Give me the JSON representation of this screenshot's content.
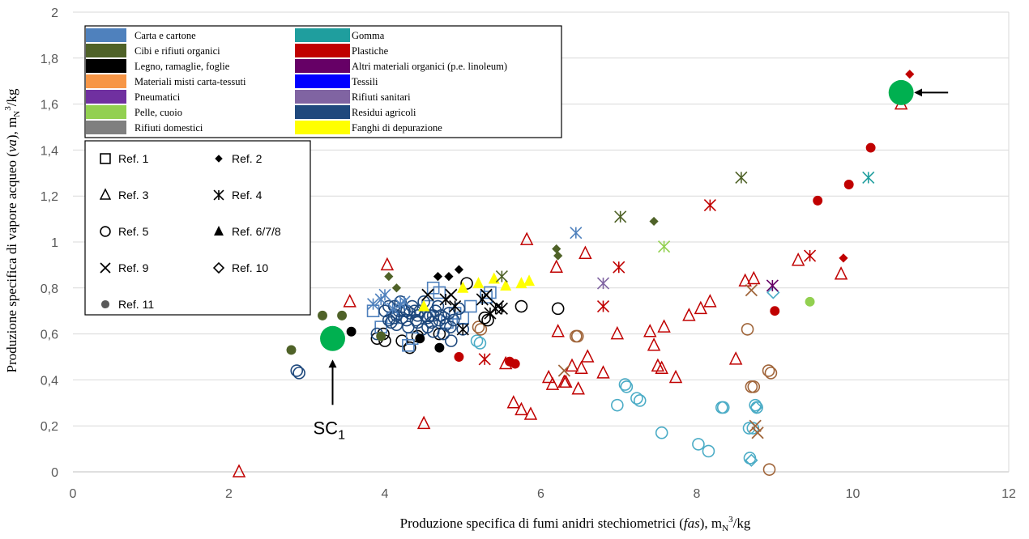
{
  "chart_data": {
    "type": "scatter",
    "title": "",
    "xlabel": {
      "prefix": "Produzione specifica di fumi anidri stechiometrici (",
      "italic": "fas",
      "suffix": "), m",
      "sub": "N",
      "sup": "3",
      "tail": "/kg"
    },
    "ylabel": {
      "prefix": "Produzione specifica di vapore acqueo (",
      "italic": "va",
      "suffix": "), m",
      "sub": "N",
      "sup": "3",
      "tail": "/kg"
    },
    "xlim": [
      0,
      12
    ],
    "ylim": [
      0,
      2
    ],
    "xticks": [
      0,
      2,
      4,
      6,
      8,
      10,
      12
    ],
    "yticks": [
      0,
      0.2,
      0.4,
      0.6,
      0.8,
      1,
      1.2,
      1.4,
      1.6,
      1.8,
      2
    ],
    "ytick_labels": [
      "0",
      "0,2",
      "0,4",
      "0,6",
      "0,8",
      "1",
      "1,2",
      "1,4",
      "1,6",
      "1,8",
      "2"
    ],
    "xtick_labels": [
      "0",
      "2",
      "4",
      "6",
      "8",
      "10",
      "12"
    ],
    "grid": "horizontal",
    "colors": {
      "carta": "#4F81BD",
      "cibi": "#4F6228",
      "legno": "#000000",
      "misti": "#F79646",
      "pneumatici": "#7030A0",
      "pelle": "#92D050",
      "domestici": "#7F7F7F",
      "gomma": "#1F9E9E",
      "plastiche": "#C00000",
      "altri": "#660066",
      "tessili": "#0000FF",
      "sanitari": "#8064A2",
      "agricoli": "#1F497D",
      "fanghi": "#FFFF00",
      "ref3_red": "#C00000",
      "ref10_cyan": "#4BACC6",
      "ref9_brown": "#A0653A",
      "highlight": "#00B050"
    },
    "materials_legend": [
      {
        "label": "Carta e cartone",
        "color": "#4F81BD"
      },
      {
        "label": "Cibi e rifiuti organici",
        "color": "#4F6228"
      },
      {
        "label": "Legno, ramaglie, foglie",
        "color": "#000000"
      },
      {
        "label": "Materiali misti carta-tessuti",
        "color": "#F79646"
      },
      {
        "label": "Pneumatici",
        "color": "#7030A0"
      },
      {
        "label": "Pelle, cuoio",
        "color": "#92D050"
      },
      {
        "label": "Rifiuti domestici",
        "color": "#7F7F7F"
      },
      {
        "label": "Gomma",
        "color": "#1F9E9E"
      },
      {
        "label": "Plastiche",
        "color": "#C00000"
      },
      {
        "label": "Altri materiali organici (p.e. linoleum)",
        "color": "#660066"
      },
      {
        "label": "Tessili",
        "color": "#0000FF"
      },
      {
        "label": "Rifiuti sanitari",
        "color": "#8064A2"
      },
      {
        "label": "Residui agricoli",
        "color": "#1F497D"
      },
      {
        "label": "Fanghi di depurazione",
        "color": "#FFFF00"
      }
    ],
    "refs_legend": [
      {
        "label": "Ref. 1",
        "marker": "square"
      },
      {
        "label": "Ref. 2",
        "marker": "diamond-filled"
      },
      {
        "label": "Ref. 3",
        "marker": "triangle"
      },
      {
        "label": "Ref. 4",
        "marker": "star"
      },
      {
        "label": "Ref. 5",
        "marker": "circle"
      },
      {
        "label": "Ref. 6/7/8",
        "marker": "triangle-filled"
      },
      {
        "label": "Ref. 9",
        "marker": "x"
      },
      {
        "label": "Ref. 10",
        "marker": "diamond"
      },
      {
        "label": "Ref. 11",
        "marker": "circle-filled",
        "color": "#595959"
      }
    ],
    "annotations": [
      {
        "text": "SC",
        "sub": "1",
        "x": 3.33,
        "y": 0.58
      },
      {
        "arrow_to": [
          10.62,
          1.65
        ]
      }
    ],
    "series": [
      {
        "marker": "triangle",
        "color": "#C00000",
        "points": [
          [
            2.13,
            0
          ],
          [
            3.55,
            0.74
          ],
          [
            4.03,
            0.9
          ],
          [
            4.5,
            0.21
          ],
          [
            5.55,
            0.47
          ],
          [
            5.65,
            0.3
          ],
          [
            5.75,
            0.27
          ],
          [
            5.82,
            1.01
          ],
          [
            5.87,
            0.25
          ],
          [
            6.1,
            0.41
          ],
          [
            6.15,
            0.38
          ],
          [
            6.2,
            0.89
          ],
          [
            6.22,
            0.61
          ],
          [
            6.3,
            0.39
          ],
          [
            6.32,
            0.39
          ],
          [
            6.4,
            0.46
          ],
          [
            6.48,
            0.36
          ],
          [
            6.52,
            0.45
          ],
          [
            6.57,
            0.95
          ],
          [
            6.6,
            0.5
          ],
          [
            6.8,
            0.43
          ],
          [
            6.98,
            0.6
          ],
          [
            7.4,
            0.61
          ],
          [
            7.45,
            0.55
          ],
          [
            7.5,
            0.46
          ],
          [
            7.55,
            0.45
          ],
          [
            7.58,
            0.63
          ],
          [
            7.73,
            0.41
          ],
          [
            7.9,
            0.68
          ],
          [
            8.05,
            0.71
          ],
          [
            8.17,
            0.74
          ],
          [
            8.5,
            0.49
          ],
          [
            8.62,
            0.83
          ],
          [
            8.73,
            0.84
          ],
          [
            9.3,
            0.92
          ],
          [
            9.85,
            0.86
          ],
          [
            10.62,
            1.6
          ]
        ]
      },
      {
        "marker": "circle",
        "color": "#4BACC6",
        "points": [
          [
            5.18,
            0.57
          ],
          [
            5.22,
            0.56
          ],
          [
            6.98,
            0.29
          ],
          [
            7.08,
            0.38
          ],
          [
            7.1,
            0.37
          ],
          [
            7.23,
            0.32
          ],
          [
            7.27,
            0.31
          ],
          [
            7.55,
            0.17
          ],
          [
            8.02,
            0.12
          ],
          [
            8.15,
            0.09
          ],
          [
            8.32,
            0.28
          ],
          [
            8.34,
            0.28
          ],
          [
            8.67,
            0.19
          ],
          [
            8.68,
            0.06
          ],
          [
            8.72,
            0.19
          ],
          [
            8.75,
            0.29
          ],
          [
            8.77,
            0.28
          ]
        ]
      },
      {
        "marker": "circle",
        "color": "#A0653A",
        "points": [
          [
            5.2,
            0.63
          ],
          [
            5.23,
            0.62
          ],
          [
            6.45,
            0.59
          ],
          [
            6.47,
            0.59
          ],
          [
            8.65,
            0.62
          ],
          [
            8.7,
            0.37
          ],
          [
            8.73,
            0.37
          ],
          [
            8.92,
            0.44
          ],
          [
            8.95,
            0.43
          ],
          [
            8.93,
            0.01
          ]
        ]
      },
      {
        "marker": "diamond",
        "color": "#4BACC6",
        "points": [
          [
            8.7,
            0.05
          ],
          [
            8.76,
            0.28
          ],
          [
            8.98,
            0.78
          ]
        ]
      },
      {
        "marker": "x",
        "color": "#A0653A",
        "points": [
          [
            6.3,
            0.44
          ],
          [
            8.7,
            0.79
          ],
          [
            8.75,
            0.2
          ],
          [
            8.78,
            0.17
          ]
        ]
      },
      {
        "marker": "circle",
        "color": "#000000",
        "points": [
          [
            3.9,
            0.58
          ],
          [
            3.98,
            0.6
          ],
          [
            4.0,
            0.57
          ],
          [
            4.22,
            0.57
          ],
          [
            4.32,
            0.54
          ],
          [
            4.42,
            0.59
          ],
          [
            4.7,
            0.6
          ],
          [
            5.05,
            0.82
          ],
          [
            5.28,
            0.67
          ],
          [
            5.32,
            0.66
          ],
          [
            5.75,
            0.72
          ],
          [
            6.22,
            0.71
          ]
        ]
      },
      {
        "marker": "square",
        "color": "#4F81BD",
        "points": [
          [
            3.85,
            0.7
          ],
          [
            3.95,
            0.63
          ],
          [
            4.1,
            0.67
          ],
          [
            4.3,
            0.55
          ],
          [
            4.35,
            0.58
          ],
          [
            4.55,
            0.72
          ],
          [
            4.62,
            0.8
          ],
          [
            4.7,
            0.78
          ],
          [
            4.8,
            0.65
          ],
          [
            4.9,
            0.69
          ],
          [
            5.0,
            0.67
          ],
          [
            5.1,
            0.72
          ],
          [
            5.3,
            0.76
          ],
          [
            5.35,
            0.78
          ]
        ]
      },
      {
        "marker": "circle",
        "color": "#1F497D",
        "points": [
          [
            2.87,
            0.44
          ],
          [
            2.9,
            0.43
          ],
          [
            3.9,
            0.6
          ],
          [
            4.0,
            0.7
          ],
          [
            4.05,
            0.72
          ],
          [
            4.15,
            0.68
          ],
          [
            4.2,
            0.74
          ],
          [
            4.25,
            0.7
          ],
          [
            4.28,
            0.66
          ],
          [
            4.32,
            0.69
          ],
          [
            4.35,
            0.72
          ],
          [
            4.4,
            0.66
          ],
          [
            4.45,
            0.7
          ],
          [
            4.5,
            0.74
          ],
          [
            4.55,
            0.67
          ],
          [
            4.6,
            0.65
          ],
          [
            4.65,
            0.7
          ],
          [
            4.68,
            0.72
          ],
          [
            4.72,
            0.68
          ],
          [
            4.78,
            0.64
          ],
          [
            4.82,
            0.69
          ],
          [
            4.88,
            0.66
          ],
          [
            4.95,
            0.71
          ],
          [
            5.0,
            0.62
          ],
          [
            4.85,
            0.57
          ],
          [
            4.75,
            0.6
          ],
          [
            4.62,
            0.61
          ],
          [
            4.55,
            0.63
          ],
          [
            4.48,
            0.62
          ],
          [
            4.42,
            0.65
          ],
          [
            4.3,
            0.63
          ],
          [
            4.15,
            0.64
          ],
          [
            4.12,
            0.67
          ],
          [
            4.08,
            0.65
          ],
          [
            4.05,
            0.66
          ],
          [
            4.12,
            0.72
          ],
          [
            4.18,
            0.7
          ],
          [
            4.22,
            0.67
          ],
          [
            4.28,
            0.7
          ],
          [
            4.38,
            0.7
          ],
          [
            4.42,
            0.68
          ],
          [
            4.52,
            0.68
          ],
          [
            4.58,
            0.68
          ],
          [
            4.62,
            0.68
          ],
          [
            4.7,
            0.66
          ],
          [
            4.76,
            0.67
          ],
          [
            4.84,
            0.63
          ]
        ]
      },
      {
        "marker": "diamond-filled",
        "color": "#000000",
        "points": [
          [
            4.68,
            0.85
          ],
          [
            4.82,
            0.85
          ],
          [
            4.95,
            0.88
          ]
        ]
      },
      {
        "marker": "diamond-filled",
        "color": "#4F6228",
        "points": [
          [
            4.05,
            0.85
          ],
          [
            4.15,
            0.8
          ],
          [
            6.2,
            0.97
          ],
          [
            6.22,
            0.94
          ],
          [
            7.45,
            1.09
          ]
        ]
      },
      {
        "marker": "diamond-filled",
        "color": "#C00000",
        "points": [
          [
            10.53,
            1.67
          ],
          [
            10.73,
            1.73
          ],
          [
            9.88,
            0.93
          ]
        ]
      },
      {
        "marker": "circle-filled",
        "color": "#4F6228",
        "points": [
          [
            2.8,
            0.53
          ],
          [
            3.2,
            0.68
          ],
          [
            3.45,
            0.68
          ],
          [
            3.95,
            0.59
          ]
        ]
      },
      {
        "marker": "circle-filled",
        "color": "#000000",
        "points": [
          [
            3.57,
            0.61
          ],
          [
            4.45,
            0.58
          ],
          [
            4.7,
            0.54
          ]
        ]
      },
      {
        "marker": "circle-filled",
        "color": "#C00000",
        "points": [
          [
            4.95,
            0.5
          ],
          [
            5.6,
            0.48
          ],
          [
            5.67,
            0.47
          ],
          [
            9.0,
            0.7
          ],
          [
            9.55,
            1.18
          ],
          [
            9.95,
            1.25
          ],
          [
            10.23,
            1.41
          ]
        ]
      },
      {
        "marker": "circle-filled",
        "color": "#92D050",
        "points": [
          [
            9.45,
            0.74
          ]
        ]
      },
      {
        "marker": "triangle-filled",
        "color": "#FFFF00",
        "points": [
          [
            4.5,
            0.72
          ],
          [
            5.0,
            0.8
          ],
          [
            5.2,
            0.82
          ],
          [
            5.4,
            0.84
          ],
          [
            5.55,
            0.81
          ],
          [
            5.75,
            0.82
          ],
          [
            5.85,
            0.83
          ]
        ]
      },
      {
        "marker": "star",
        "color": "#C00000",
        "points": [
          [
            5.28,
            0.49
          ],
          [
            6.8,
            0.72
          ],
          [
            7.0,
            0.89
          ],
          [
            8.17,
            1.16
          ],
          [
            9.45,
            0.94
          ]
        ]
      },
      {
        "marker": "star",
        "color": "#4F6228",
        "points": [
          [
            5.5,
            0.85
          ],
          [
            7.02,
            1.11
          ],
          [
            8.57,
            1.28
          ]
        ]
      },
      {
        "marker": "star",
        "color": "#4F81BD",
        "points": [
          [
            6.45,
            1.04
          ]
        ]
      },
      {
        "marker": "star",
        "color": "#1F9E9E",
        "points": [
          [
            10.2,
            1.28
          ]
        ]
      },
      {
        "marker": "star",
        "color": "#8064A2",
        "points": [
          [
            6.8,
            0.82
          ]
        ]
      },
      {
        "marker": "star",
        "color": "#92D050",
        "points": [
          [
            7.58,
            0.98
          ]
        ]
      },
      {
        "marker": "star",
        "color": "#660066",
        "points": [
          [
            8.97,
            0.81
          ]
        ]
      },
      {
        "marker": "star",
        "color": "#000000",
        "points": [
          [
            4.78,
            0.75
          ],
          [
            4.9,
            0.72
          ],
          [
            5.0,
            0.62
          ],
          [
            5.25,
            0.75
          ],
          [
            5.35,
            0.69
          ],
          [
            5.42,
            0.71
          ],
          [
            5.5,
            0.71
          ]
        ]
      },
      {
        "marker": "x",
        "color": "#000000",
        "points": [
          [
            4.55,
            0.77
          ],
          [
            4.85,
            0.77
          ],
          [
            5.3,
            0.77
          ],
          [
            5.45,
            0.72
          ]
        ]
      },
      {
        "marker": "star",
        "color": "#4F81BD",
        "points": [
          [
            3.85,
            0.73
          ],
          [
            3.95,
            0.75
          ],
          [
            4.0,
            0.77
          ],
          [
            4.2,
            0.73
          ],
          [
            4.25,
            0.74
          ],
          [
            4.1,
            0.71
          ]
        ]
      },
      {
        "marker": "circle-filled",
        "color": "#00B050",
        "size": 2.6,
        "points": [
          [
            3.33,
            0.58
          ],
          [
            10.62,
            1.65
          ]
        ]
      }
    ]
  }
}
